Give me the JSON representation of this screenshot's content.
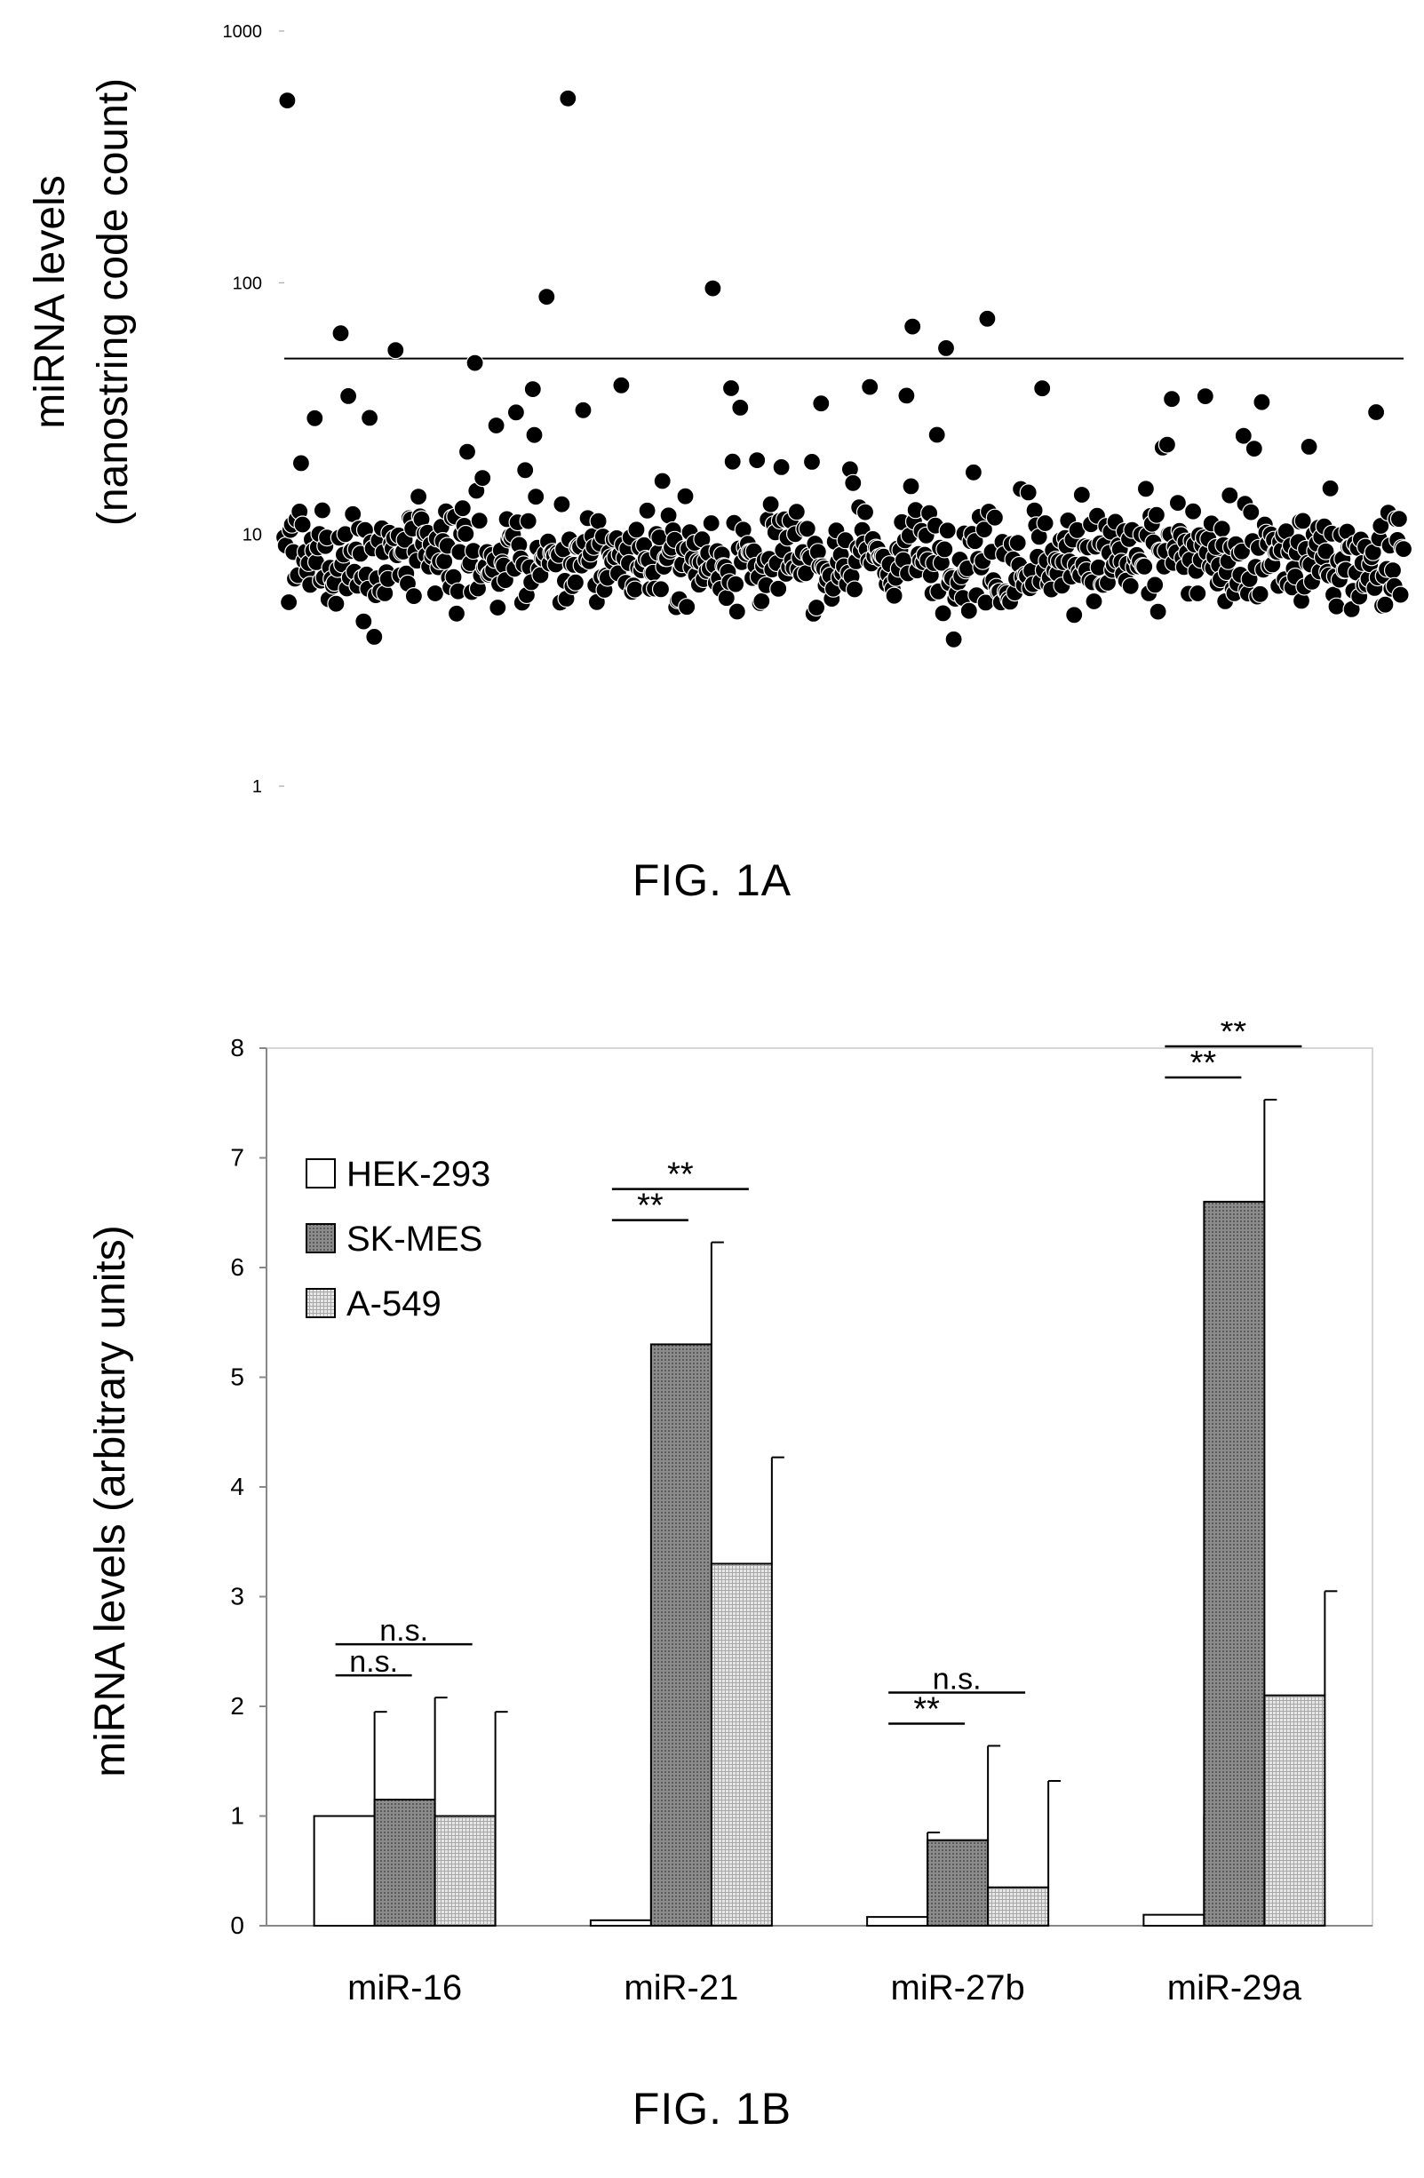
{
  "figures": {
    "fig_a_caption": "FIG. 1A",
    "fig_b_caption": "FIG. 1B"
  },
  "colors": {
    "marker": "#000000",
    "hek293_fill": "#ffffff",
    "skmes_fill": "#8c8c8c",
    "a549_fill": "#d2d2d2"
  },
  "chart_data": [
    {
      "type": "scatter",
      "title": "",
      "ylabel_line1": "miRNA levels",
      "ylabel_line2": "(nanostring code count)",
      "xlabel": "",
      "yscale": "log",
      "ylim": [
        1,
        1000
      ],
      "yticks": [
        "1",
        "10",
        "100",
        "1000"
      ],
      "threshold": 50,
      "n_points": 735,
      "outliers": [
        {
          "x": 2,
          "y": 530
        },
        {
          "x": 186,
          "y": 540
        },
        {
          "x": 172,
          "y": 88
        },
        {
          "x": 281,
          "y": 95
        },
        {
          "x": 37,
          "y": 63
        },
        {
          "x": 73,
          "y": 54
        },
        {
          "x": 412,
          "y": 67
        },
        {
          "x": 461,
          "y": 72
        },
        {
          "x": 434,
          "y": 55
        },
        {
          "x": 125,
          "y": 48
        }
      ],
      "note": "Remaining points spread mostly between 3 and 40 counts."
    },
    {
      "type": "bar",
      "title": "",
      "ylabel": "miRNA levels (arbitrary units)",
      "xlabel": "",
      "ylim": [
        0,
        8
      ],
      "yticks": [
        "0",
        "1",
        "2",
        "3",
        "4",
        "5",
        "6",
        "7",
        "8"
      ],
      "categories": [
        "miR-16",
        "miR-21",
        "miR-27b",
        "miR-29a"
      ],
      "legend_position": "top-left",
      "series": [
        {
          "name": "HEK-293",
          "values": [
            1.0,
            0.05,
            0.08,
            0.1
          ],
          "errors": [
            0.95,
            0.88,
            0.77,
            0.9
          ]
        },
        {
          "name": "SK-MES",
          "values": [
            1.15,
            5.3,
            0.78,
            6.6
          ],
          "errors": [
            0.93,
            0.93,
            0.86,
            0.93
          ]
        },
        {
          "name": "A-549",
          "values": [
            1.0,
            3.3,
            0.35,
            2.1
          ],
          "errors": [
            0.95,
            0.97,
            0.97,
            0.95
          ]
        }
      ],
      "significance": [
        {
          "category": "miR-16",
          "compare": "SK-MES",
          "label": "n.s."
        },
        {
          "category": "miR-16",
          "compare": "A-549",
          "label": "n.s."
        },
        {
          "category": "miR-21",
          "compare": "SK-MES",
          "label": "**"
        },
        {
          "category": "miR-21",
          "compare": "A-549",
          "label": "**"
        },
        {
          "category": "miR-27b",
          "compare": "SK-MES",
          "label": "**"
        },
        {
          "category": "miR-27b",
          "compare": "A-549",
          "label": "n.s."
        },
        {
          "category": "miR-29a",
          "compare": "SK-MES",
          "label": "**"
        },
        {
          "category": "miR-29a",
          "compare": "A-549",
          "label": "**"
        }
      ]
    }
  ]
}
